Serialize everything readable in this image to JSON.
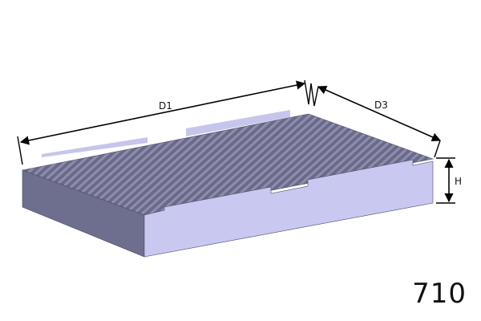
{
  "diagram": {
    "labels": {
      "length": "D1",
      "width": "D3",
      "height": "H"
    },
    "part_number": "710",
    "colors": {
      "front_face": "#6f6f90",
      "side_face": "#c9c8f0",
      "pleats_dark": "#5f5f7c",
      "pleats_light": "#9595b4",
      "tabs": "#c6c5ec",
      "dimension_lines": "#000000"
    }
  }
}
